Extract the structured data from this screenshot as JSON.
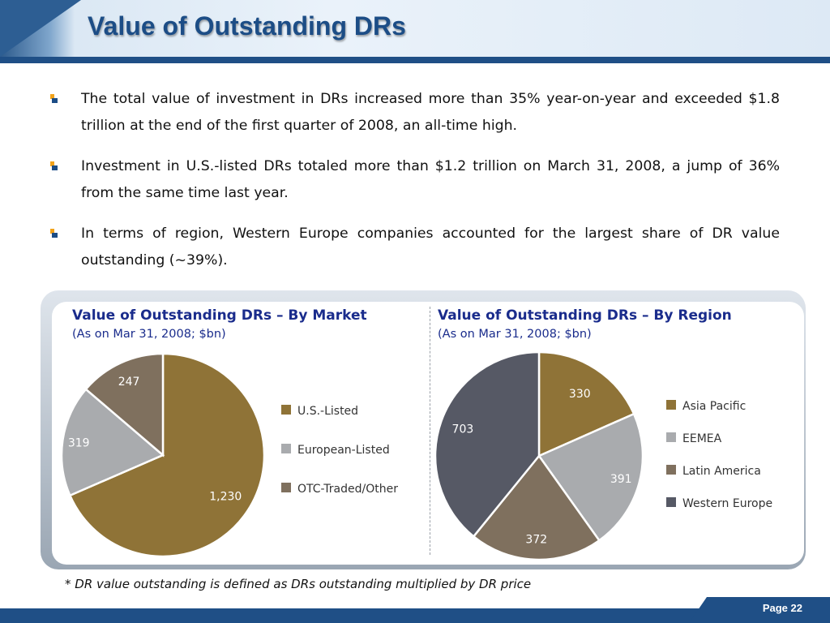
{
  "header": {
    "title": "Value of Outstanding DRs"
  },
  "bullets": [
    "The total value of investment in DRs increased more than 35% year-on-year and exceeded $1.8 trillion at the end of the first quarter of 2008, an all-time high.",
    "Investment in U.S.-listed DRs totaled more than $1.2 trillion on March 31, 2008, a jump of 36% from the same time last year.",
    "In terms of region, Western Europe companies accounted for the largest share of DR value outstanding (~39%)."
  ],
  "charts": {
    "market": {
      "title": "Value of Outstanding DRs – By Market",
      "subtitle": "(As on Mar 31, 2008; $bn)"
    },
    "region": {
      "title": "Value of Outstanding DRs – By Region",
      "subtitle": "(As on Mar 31, 2008; $bn)"
    }
  },
  "chart_data": [
    {
      "type": "pie",
      "title": "Value of Outstanding DRs – By Market",
      "subtitle": "(As on Mar 31, 2008; $bn)",
      "categories": [
        "U.S.-Listed",
        "European-Listed",
        "OTC-Traded/Other"
      ],
      "values": [
        1230,
        319,
        247
      ],
      "data_labels": [
        "1,230",
        "319",
        "247"
      ],
      "colors": [
        "#8f7337",
        "#a9abae",
        "#7f705e"
      ],
      "legend": "right"
    },
    {
      "type": "pie",
      "title": "Value of Outstanding DRs – By Region",
      "subtitle": "(As on Mar 31, 2008; $bn)",
      "categories": [
        "Asia Pacific",
        "EEMEA",
        "Latin America",
        "Western Europe"
      ],
      "values": [
        330,
        391,
        372,
        703
      ],
      "data_labels": [
        "330",
        "391",
        "372",
        "703"
      ],
      "colors": [
        "#8f7337",
        "#a9abae",
        "#7f705e",
        "#565965"
      ],
      "legend": "right"
    }
  ],
  "footnote": "* DR value outstanding is defined as DRs outstanding multiplied by DR price",
  "footer": {
    "page": "Page 22"
  }
}
